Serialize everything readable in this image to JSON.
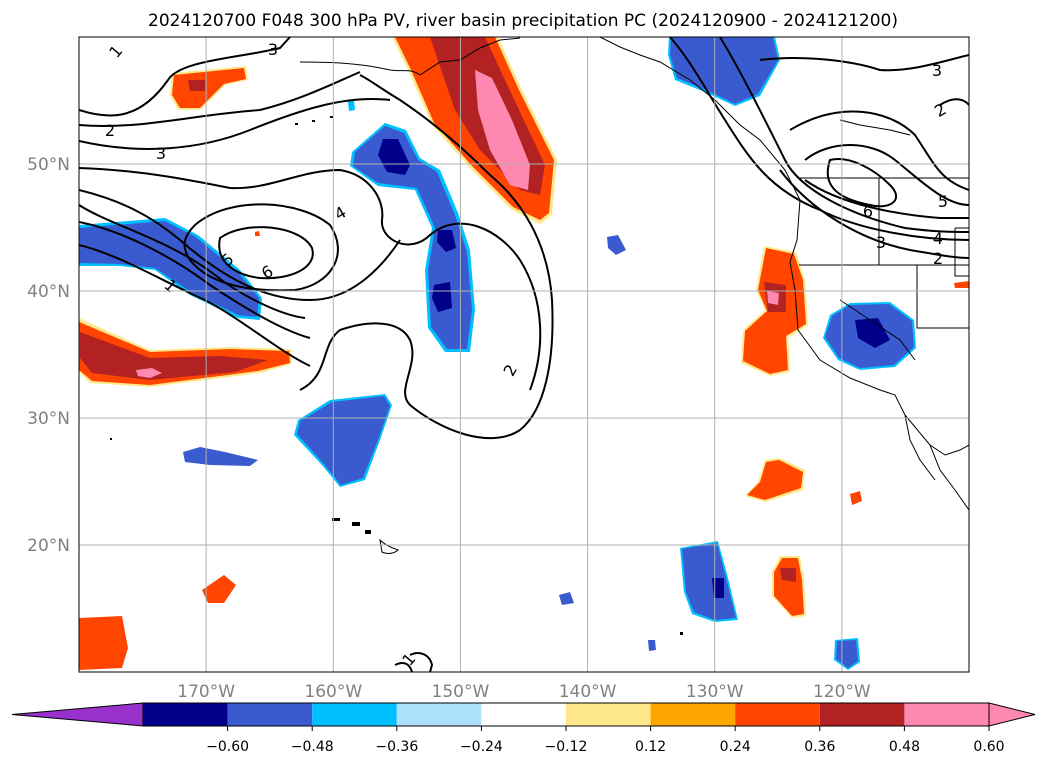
{
  "chart_data": {
    "type": "heatmap",
    "title": "2024120700 F048 300 hPa PV, river basin precipitation PC (2024120900 - 2024121200)",
    "map": {
      "lon_range": [
        -180,
        -110
      ],
      "lat_range": [
        10,
        60
      ],
      "grid": true,
      "lon_ticks": [
        -170,
        -160,
        -150,
        -140,
        -130,
        -120
      ],
      "lat_ticks": [
        20,
        30,
        40,
        50
      ],
      "lon_tick_labels": [
        "170°W",
        "160°W",
        "150°W",
        "140°W",
        "130°W",
        "120°W"
      ],
      "lat_tick_labels": [
        "20°N",
        "30°N",
        "40°N",
        "50°N"
      ]
    },
    "colorbar": {
      "orientation": "horizontal",
      "extend": "both",
      "levels": [
        -0.6,
        -0.48,
        -0.36,
        -0.24,
        -0.12,
        0.12,
        0.24,
        0.36,
        0.48,
        0.6
      ],
      "tick_labels": [
        "−0.60",
        "−0.48",
        "−0.36",
        "−0.24",
        "−0.12",
        "0.12",
        "0.24",
        "0.36",
        "0.48",
        "0.60"
      ],
      "colors": [
        "#9932CC",
        "#00008B",
        "#3A5BD0",
        "#00BFFF",
        "#ADE0FA",
        "#FFFFFF",
        "#FFE88A",
        "#FFA500",
        "#FF4500",
        "#B22222",
        "#FF88B0"
      ]
    },
    "pv_contour_labels": [
      "1",
      "2",
      "3",
      "4",
      "5",
      "6"
    ],
    "precip_pc_regions": [
      {
        "lon": -166.5,
        "lat": 36.0,
        "peak": 0.62
      },
      {
        "lon": -147.0,
        "lat": 55.0,
        "peak": 0.65
      },
      {
        "lon": -168.5,
        "lat": 56.0,
        "peak": 0.5
      },
      {
        "lon": -126.0,
        "lat": 39.5,
        "peak": 0.5
      },
      {
        "lon": -125.0,
        "lat": 25.5,
        "peak": 0.4
      },
      {
        "lon": -124.3,
        "lat": 17.0,
        "peak": 0.5
      },
      {
        "lon": -168.0,
        "lat": 16.5,
        "peak": 0.4
      },
      {
        "lon": -177.5,
        "lat": 12.5,
        "peak": 0.4
      },
      {
        "lon": -165.0,
        "lat": 44.5,
        "peak": 0.3
      },
      {
        "lon": -114.0,
        "lat": 40.5,
        "peak": 0.4
      },
      {
        "lon": -118.5,
        "lat": 23.5,
        "peak": 0.4
      },
      {
        "lon": -169.0,
        "lat": 41.5,
        "peak": -0.42
      },
      {
        "lon": -155.0,
        "lat": 47.0,
        "peak": -0.55
      },
      {
        "lon": -150.0,
        "lat": 41.0,
        "peak": -0.55
      },
      {
        "lon": -158.0,
        "lat": 28.5,
        "peak": -0.4
      },
      {
        "lon": -131.0,
        "lat": 57.0,
        "peak": -0.4
      },
      {
        "lon": -120.0,
        "lat": 37.0,
        "peak": -0.55
      },
      {
        "lon": -129.5,
        "lat": 15.5,
        "peak": -0.5
      },
      {
        "lon": -119.5,
        "lat": 11.5,
        "peak": -0.4
      },
      {
        "lon": -167.5,
        "lat": 27.2,
        "peak": -0.35
      },
      {
        "lon": -140.8,
        "lat": 43.5,
        "peak": -0.3
      },
      {
        "lon": -141.5,
        "lat": 16.0,
        "peak": -0.3
      }
    ]
  }
}
